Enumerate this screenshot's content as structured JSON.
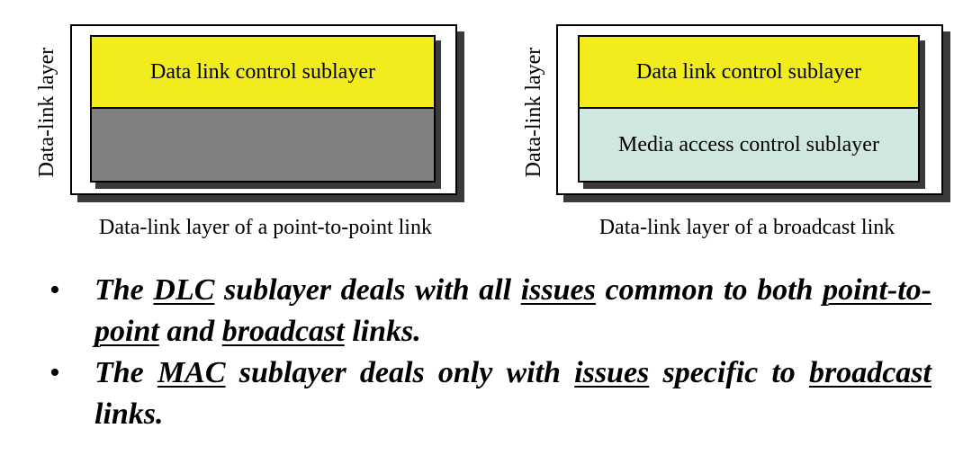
{
  "left_diagram": {
    "vertical_label": "Data-link layer",
    "top_sublayer": "Data link control sublayer",
    "top_color": "#f2ec1c",
    "bottom_color": "#808083",
    "caption": "Data-link layer of a point-to-point link"
  },
  "right_diagram": {
    "vertical_label": "Data-link layer",
    "top_sublayer": "Data link control sublayer",
    "bottom_sublayer": "Media access control sublayer",
    "top_color": "#f2ec1c",
    "bottom_color": "#cfe7e0",
    "caption": "Data-link layer of a broadcast link"
  },
  "bullets": [
    {
      "bullet_char": "•",
      "parts": [
        {
          "text": "The ",
          "u": false
        },
        {
          "text": "DLC",
          "u": true
        },
        {
          "text": " sublayer deals with all ",
          "u": false
        },
        {
          "text": "issues",
          "u": true
        },
        {
          "text": " common to both ",
          "u": false
        },
        {
          "text": "point-to-point",
          "u": true
        },
        {
          "text": " and ",
          "u": false
        },
        {
          "text": "broadcast",
          "u": true
        },
        {
          "text": " links.",
          "u": false
        }
      ]
    },
    {
      "bullet_char": "•",
      "parts": [
        {
          "text": "The ",
          "u": false
        },
        {
          "text": "MAC",
          "u": true
        },
        {
          "text": " sublayer deals only with ",
          "u": false
        },
        {
          "text": "issues",
          "u": true
        },
        {
          "text": " specific to ",
          "u": false
        },
        {
          "text": "broadcast",
          "u": true
        },
        {
          "text": " links.",
          "u": false
        }
      ]
    }
  ]
}
